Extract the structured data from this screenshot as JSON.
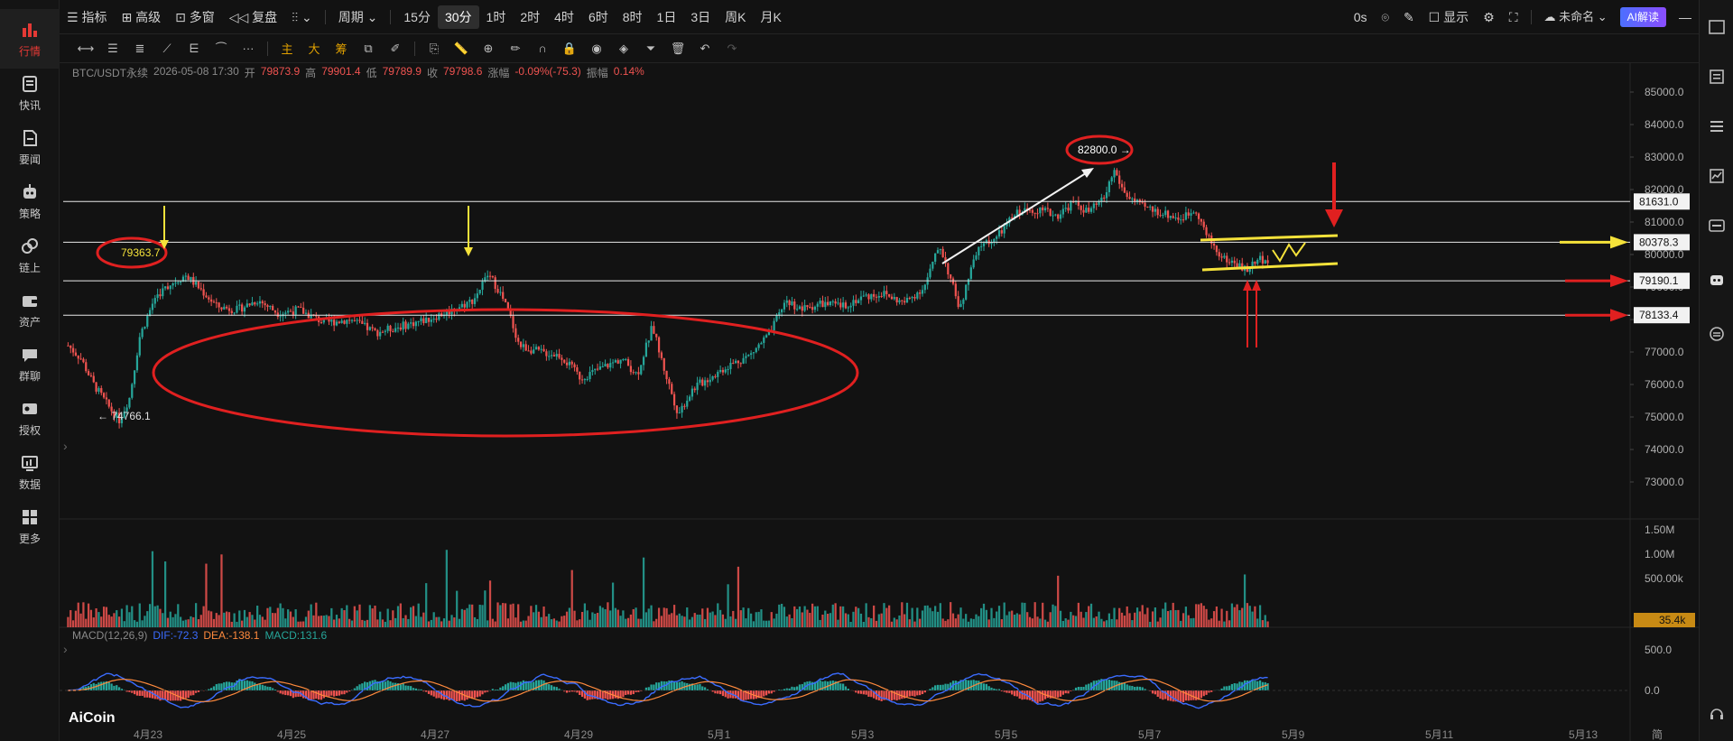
{
  "left_nav": [
    {
      "label": "行情",
      "icon": "chart-bars-icon",
      "active": true
    },
    {
      "label": "快讯",
      "icon": "newsflash-icon"
    },
    {
      "label": "要闻",
      "icon": "document-icon"
    },
    {
      "label": "策略",
      "icon": "robot-icon"
    },
    {
      "label": "链上",
      "icon": "chain-icon"
    },
    {
      "label": "资产",
      "icon": "wallet-icon"
    },
    {
      "label": "群聊",
      "icon": "chat-icon"
    },
    {
      "label": "授权",
      "icon": "key-icon"
    },
    {
      "label": "数据",
      "icon": "data-monitor-icon"
    },
    {
      "label": "更多",
      "icon": "grid-icon"
    }
  ],
  "top_bar": {
    "indicator": "指标",
    "advanced": "高级",
    "multi_window": "多窗",
    "replay": "复盘",
    "period_label": "周期",
    "periods": [
      "15分",
      "30分",
      "1时",
      "2时",
      "4时",
      "6时",
      "8时",
      "1日",
      "3日",
      "周K",
      "月K"
    ],
    "selected_period": "30分",
    "countdown": "0s",
    "display": "显示",
    "layout_name": "未命名",
    "ai_button": "AI解读"
  },
  "draw_bar": {
    "text_tools": [
      "主",
      "大",
      "筹"
    ]
  },
  "info": {
    "symbol": "BTC/USDT永续",
    "datetime": "2026-05-08 17:30",
    "open_label": "开",
    "open": "79873.9",
    "high_label": "高",
    "high": "79901.4",
    "low_label": "低",
    "low": "79789.9",
    "close_label": "收",
    "close": "79798.6",
    "change_label": "涨幅",
    "change": "-0.09%(-75.3)",
    "amp_label": "振幅",
    "amp": "0.14%"
  },
  "chart_data": {
    "type": "candlestick",
    "price_axis": {
      "min": 72000,
      "max": 85500,
      "ticks": [
        "85000.0",
        "84000.0",
        "83000.0",
        "82000.0",
        "81000.0",
        "80000.0",
        "79000.0",
        "78000.0",
        "77000.0",
        "76000.0",
        "75000.0",
        "74000.0",
        "73000.0"
      ]
    },
    "x_axis": {
      "ticks": [
        "4月23",
        "4月25",
        "4月27",
        "4月29",
        "5月1",
        "5月3",
        "5月5",
        "5月7",
        "5月9",
        "5月11",
        "5月13"
      ]
    },
    "series": [
      {
        "x": 0,
        "y": 77200
      },
      {
        "x": 5,
        "y": 76800
      },
      {
        "x": 10,
        "y": 76000
      },
      {
        "x": 16,
        "y": 75300
      },
      {
        "x": 20,
        "y": 74900
      },
      {
        "x": 24,
        "y": 75600
      },
      {
        "x": 28,
        "y": 77500
      },
      {
        "x": 34,
        "y": 78700
      },
      {
        "x": 40,
        "y": 79100
      },
      {
        "x": 46,
        "y": 79363
      },
      {
        "x": 52,
        "y": 78900
      },
      {
        "x": 58,
        "y": 78400
      },
      {
        "x": 66,
        "y": 78300
      },
      {
        "x": 74,
        "y": 78600
      },
      {
        "x": 82,
        "y": 78200
      },
      {
        "x": 90,
        "y": 78300
      },
      {
        "x": 100,
        "y": 77900
      },
      {
        "x": 110,
        "y": 78000
      },
      {
        "x": 120,
        "y": 77600
      },
      {
        "x": 130,
        "y": 77800
      },
      {
        "x": 140,
        "y": 78000
      },
      {
        "x": 150,
        "y": 78300
      },
      {
        "x": 158,
        "y": 78600
      },
      {
        "x": 164,
        "y": 79400
      },
      {
        "x": 168,
        "y": 78900
      },
      {
        "x": 172,
        "y": 78200
      },
      {
        "x": 176,
        "y": 77200
      },
      {
        "x": 184,
        "y": 77000
      },
      {
        "x": 192,
        "y": 76900
      },
      {
        "x": 200,
        "y": 76200
      },
      {
        "x": 208,
        "y": 76500
      },
      {
        "x": 216,
        "y": 76800
      },
      {
        "x": 222,
        "y": 76300
      },
      {
        "x": 228,
        "y": 77800
      },
      {
        "x": 232,
        "y": 76600
      },
      {
        "x": 238,
        "y": 75100
      },
      {
        "x": 244,
        "y": 75900
      },
      {
        "x": 250,
        "y": 76200
      },
      {
        "x": 258,
        "y": 76600
      },
      {
        "x": 266,
        "y": 76900
      },
      {
        "x": 274,
        "y": 77600
      },
      {
        "x": 280,
        "y": 78600
      },
      {
        "x": 286,
        "y": 78300
      },
      {
        "x": 294,
        "y": 78500
      },
      {
        "x": 302,
        "y": 78400
      },
      {
        "x": 310,
        "y": 78700
      },
      {
        "x": 318,
        "y": 78800
      },
      {
        "x": 326,
        "y": 78500
      },
      {
        "x": 334,
        "y": 79000
      },
      {
        "x": 340,
        "y": 80300
      },
      {
        "x": 344,
        "y": 79300
      },
      {
        "x": 348,
        "y": 78300
      },
      {
        "x": 352,
        "y": 79500
      },
      {
        "x": 356,
        "y": 80300
      },
      {
        "x": 362,
        "y": 80500
      },
      {
        "x": 370,
        "y": 81300
      },
      {
        "x": 378,
        "y": 81400
      },
      {
        "x": 386,
        "y": 81200
      },
      {
        "x": 392,
        "y": 81600
      },
      {
        "x": 398,
        "y": 81300
      },
      {
        "x": 404,
        "y": 81700
      },
      {
        "x": 408,
        "y": 82600
      },
      {
        "x": 412,
        "y": 81900
      },
      {
        "x": 418,
        "y": 81500
      },
      {
        "x": 426,
        "y": 81300
      },
      {
        "x": 434,
        "y": 81100
      },
      {
        "x": 440,
        "y": 81400
      },
      {
        "x": 444,
        "y": 80600
      },
      {
        "x": 450,
        "y": 79900
      },
      {
        "x": 456,
        "y": 79700
      },
      {
        "x": 460,
        "y": 79500
      },
      {
        "x": 464,
        "y": 79900
      },
      {
        "x": 468,
        "y": 79800
      }
    ],
    "horizontal_lines": [
      "81631.0",
      "80378.3",
      "79190.1",
      "78133.4"
    ],
    "annotations": {
      "high_label": "82800.0",
      "peak_label": "79363.7",
      "low_label": "74766.1"
    },
    "volume_axis": [
      "1.50M",
      "1.00M",
      "500.00k"
    ],
    "volume_current": "35.4k",
    "macd_axis": [
      "500.0",
      "0.0"
    ]
  },
  "macd_info": {
    "name": "MACD(12,26,9)",
    "dif": "DIF:-72.3",
    "dea": "DEA:-138.1",
    "macd": "MACD:131.6"
  },
  "watermark": "AiCoin",
  "corner_label": "简",
  "colors": {
    "up": "#26a69a",
    "down": "#ef5350",
    "accent": "#e53935",
    "ai_button": "#5b5bff",
    "annotation_yellow": "#f5e23a"
  }
}
